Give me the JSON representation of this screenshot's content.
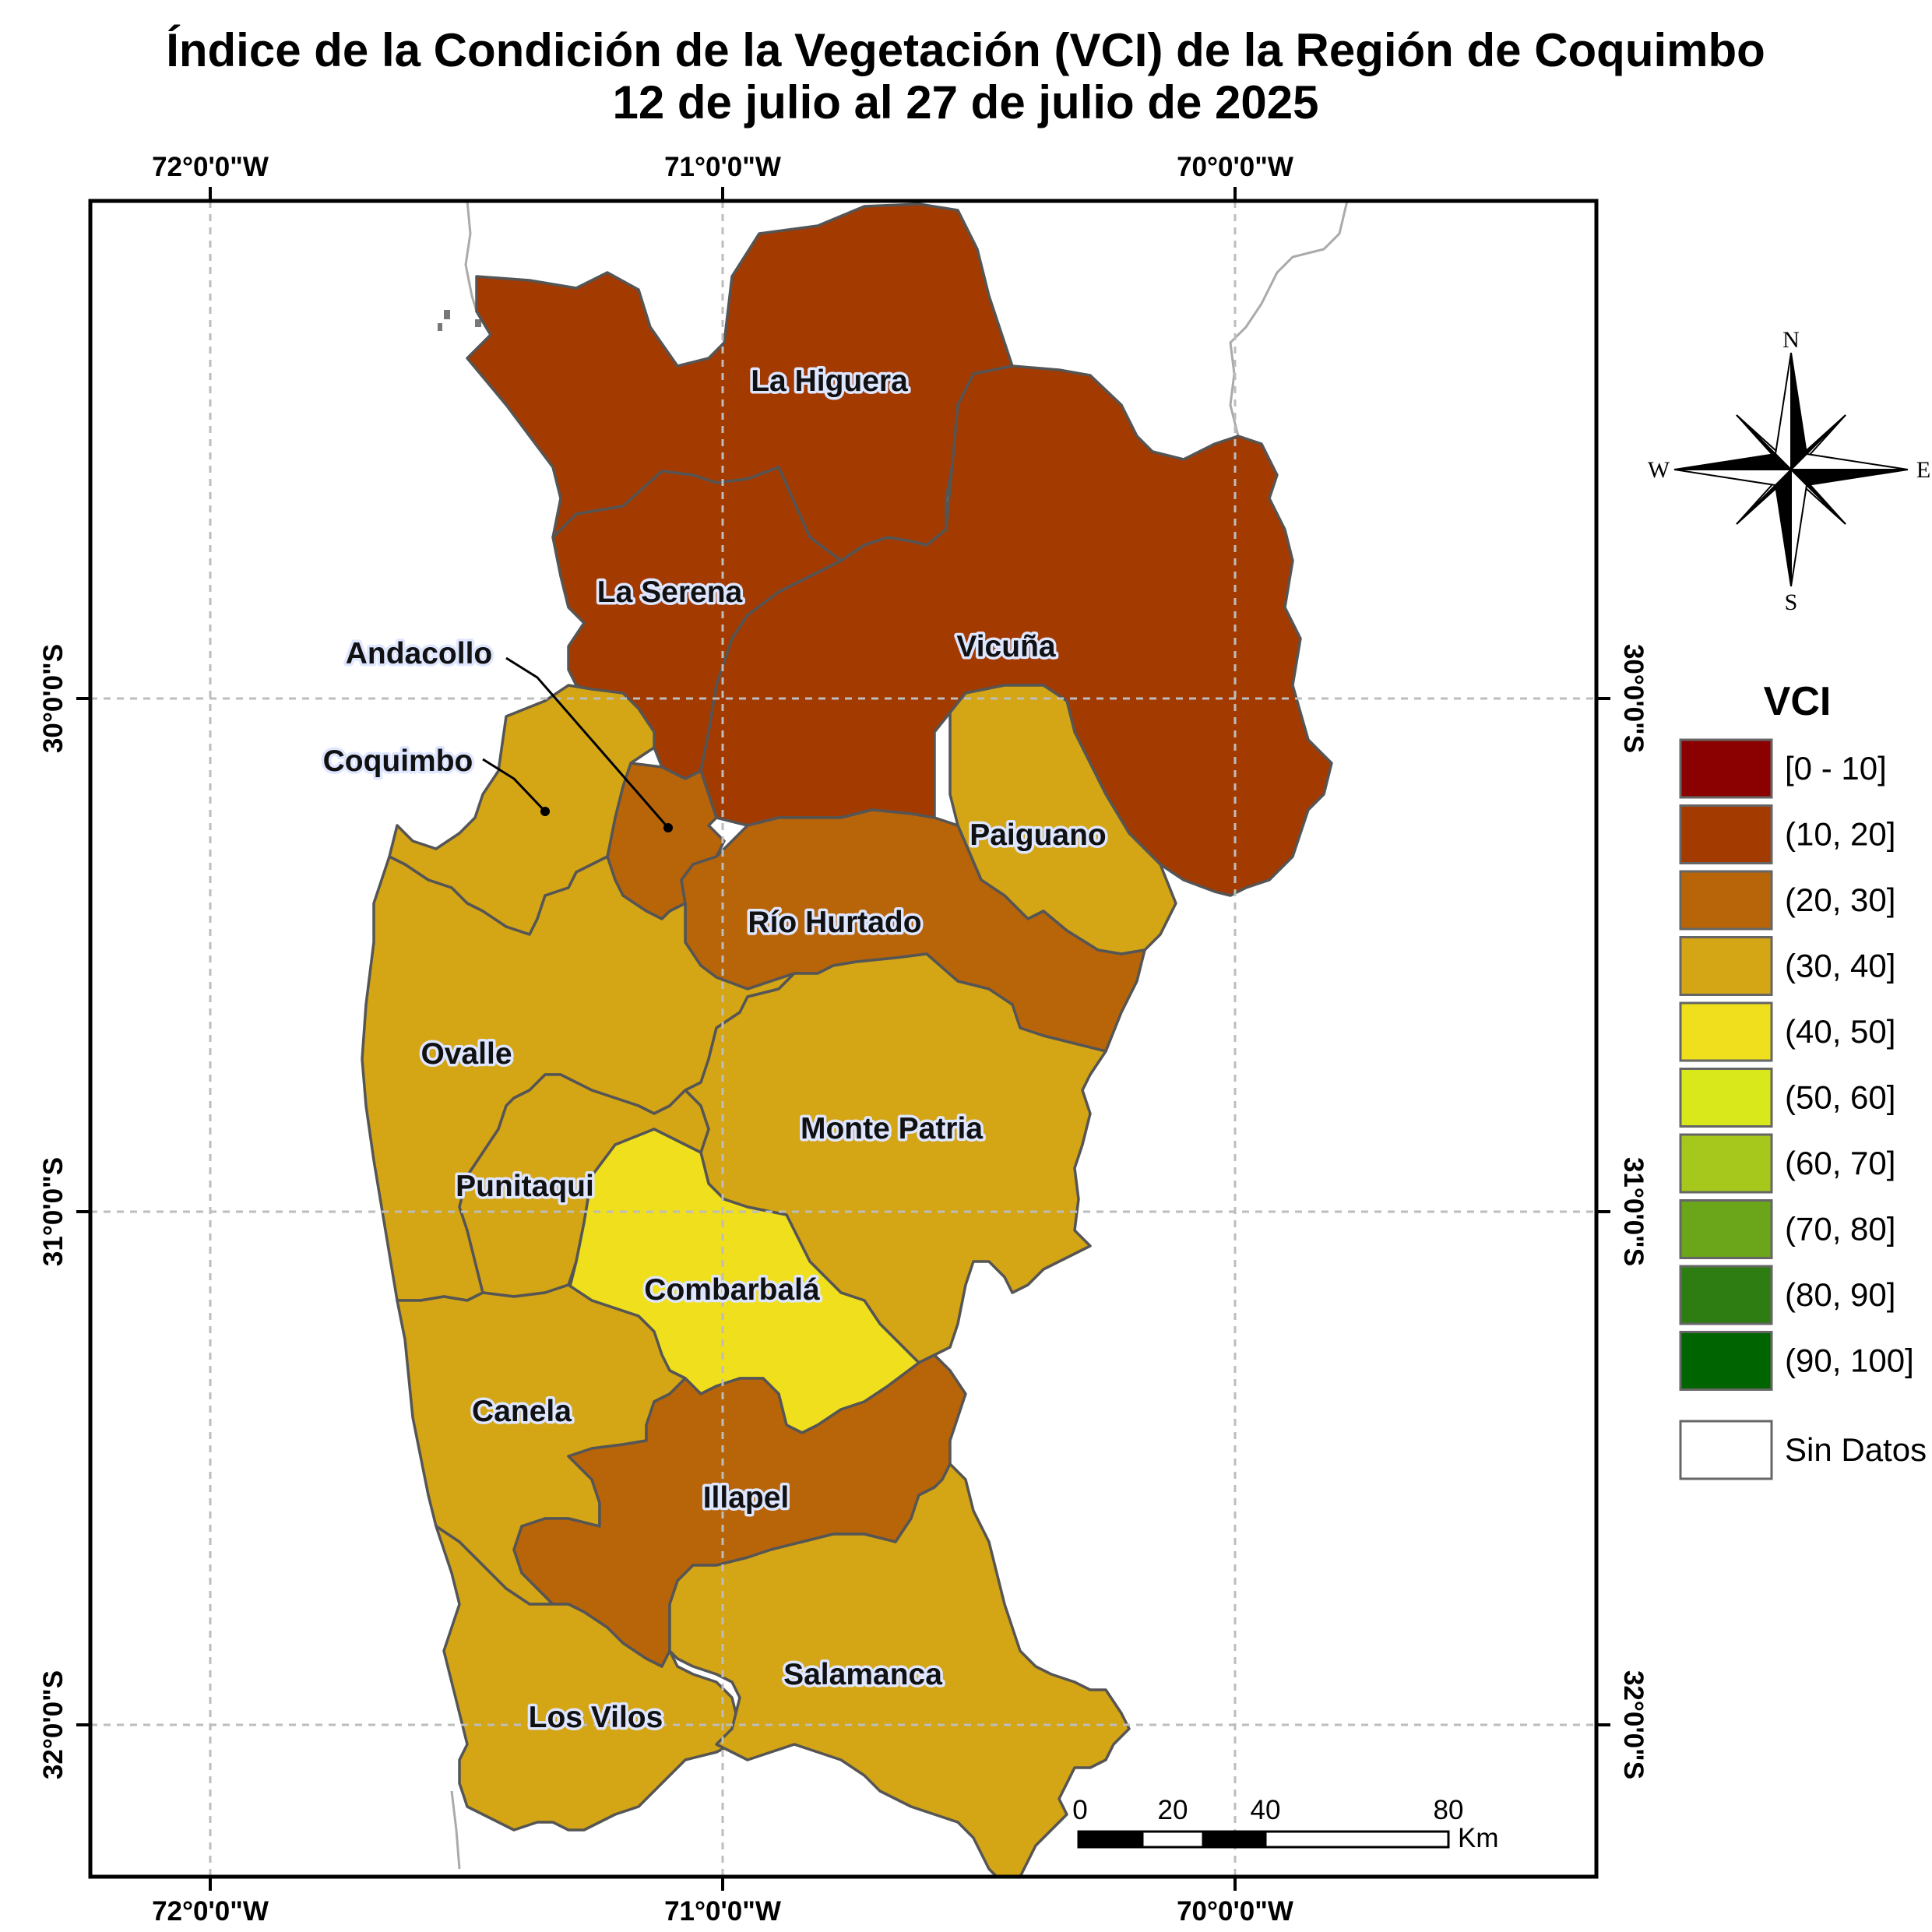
{
  "title": {
    "line1": "Índice de la Condición de la Vegetación (VCI) de la Región de Coquimbo",
    "line2": "12 de julio al 27 de julio de 2025"
  },
  "axes": {
    "longitude_labels": [
      "72°0'0\"W",
      "71°0'0\"W",
      "70°0'0\"W"
    ],
    "latitude_labels": [
      "30°0'0\"S",
      "31°0'0\"S",
      "32°0'0\"S"
    ],
    "grid": true
  },
  "legend": {
    "title": "VCI",
    "classes": [
      {
        "label": "[0 - 10]",
        "color": "#8b0000"
      },
      {
        "label": "(10, 20]",
        "color": "#a33a00"
      },
      {
        "label": "(20, 30]",
        "color": "#b8650a"
      },
      {
        "label": "(30, 40]",
        "color": "#d4a515"
      },
      {
        "label": "(40, 50]",
        "color": "#f0df1c"
      },
      {
        "label": "(50, 60]",
        "color": "#d8e81a"
      },
      {
        "label": "(60, 70]",
        "color": "#a6c81c"
      },
      {
        "label": "(70, 80]",
        "color": "#6aa51a"
      },
      {
        "label": "(80, 90]",
        "color": "#2e7d12"
      },
      {
        "label": "(90, 100]",
        "color": "#006400"
      }
    ],
    "no_data": {
      "label": "Sin Datos",
      "color": "#ffffff"
    }
  },
  "comunas": [
    {
      "name": "La Higuera",
      "vci_class": "(10, 20]"
    },
    {
      "name": "La Serena",
      "vci_class": "(10, 20]"
    },
    {
      "name": "Vicuña",
      "vci_class": "(10, 20]"
    },
    {
      "name": "Andacollo",
      "vci_class": "(20, 30]"
    },
    {
      "name": "Coquimbo",
      "vci_class": "(30, 40]"
    },
    {
      "name": "Paiguano",
      "vci_class": "(30, 40]"
    },
    {
      "name": "Río Hurtado",
      "vci_class": "(20, 30]"
    },
    {
      "name": "Ovalle",
      "vci_class": "(30, 40]"
    },
    {
      "name": "Monte Patria",
      "vci_class": "(30, 40]"
    },
    {
      "name": "Punitaqui",
      "vci_class": "(30, 40]"
    },
    {
      "name": "Combarbalá",
      "vci_class": "(40, 50]"
    },
    {
      "name": "Canela",
      "vci_class": "(30, 40]"
    },
    {
      "name": "Illapel",
      "vci_class": "(20, 30]"
    },
    {
      "name": "Los Vilos",
      "vci_class": "(30, 40]"
    },
    {
      "name": "Salamanca",
      "vci_class": "(30, 40]"
    }
  ],
  "scale_bar": {
    "ticks": [
      "0",
      "20",
      "40",
      "80"
    ],
    "unit": "Km"
  },
  "compass": {
    "N": "N",
    "S": "S",
    "E": "E",
    "W": "W"
  }
}
